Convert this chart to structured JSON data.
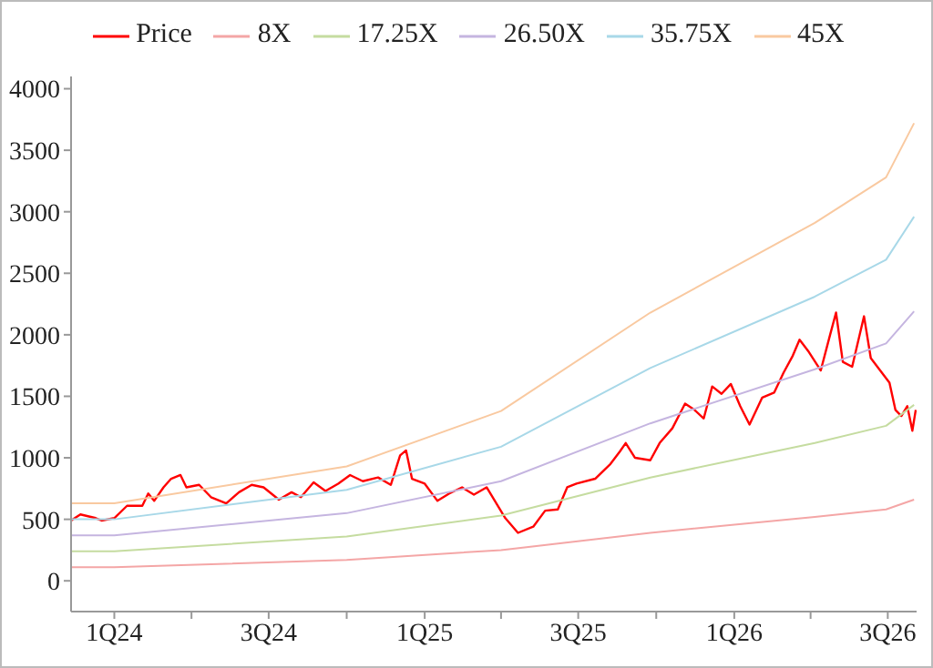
{
  "chart_data": {
    "type": "line",
    "xlim": [
      "2023-11-11",
      "2026-08-04"
    ],
    "ylim": [
      -250,
      4100
    ],
    "xticks": [
      {
        "value": "2024-01-01",
        "label": "1Q24"
      },
      {
        "value": "2024-04-01",
        "label": null
      },
      {
        "value": "2024-07-01",
        "label": "3Q24"
      },
      {
        "value": "2024-10-01",
        "label": null
      },
      {
        "value": "2025-01-01",
        "label": "1Q25"
      },
      {
        "value": "2025-04-01",
        "label": null
      },
      {
        "value": "2025-07-01",
        "label": "3Q25"
      },
      {
        "value": "2025-10-01",
        "label": null
      },
      {
        "value": "2026-01-01",
        "label": "1Q26"
      },
      {
        "value": "2026-04-01",
        "label": null
      },
      {
        "value": "2026-07-01",
        "label": "3Q26"
      }
    ],
    "yticks": [
      0,
      500,
      1000,
      1500,
      2000,
      2500,
      3000,
      3500,
      4000
    ],
    "legend": "top",
    "marker": "none",
    "line_style": "solid",
    "series": [
      {
        "name": "Price",
        "color": "#ff0000",
        "x": [
          "2023-11-11",
          "2023-11-22",
          "2023-12-10",
          "2023-12-17",
          "2024-01-01",
          "2024-01-16",
          "2024-02-03",
          "2024-02-10",
          "2024-02-17",
          "2024-02-28",
          "2024-03-08",
          "2024-03-19",
          "2024-03-26",
          "2024-04-10",
          "2024-04-24",
          "2024-05-12",
          "2024-05-27",
          "2024-06-11",
          "2024-06-25",
          "2024-07-13",
          "2024-07-28",
          "2024-08-08",
          "2024-08-23",
          "2024-09-06",
          "2024-09-21",
          "2024-10-05",
          "2024-10-20",
          "2024-11-07",
          "2024-11-22",
          "2024-12-03",
          "2024-12-10",
          "2024-12-17",
          "2025-01-01",
          "2025-01-16",
          "2025-01-30",
          "2025-02-14",
          "2025-02-28",
          "2025-03-15",
          "2025-04-06",
          "2025-04-21",
          "2025-05-09",
          "2025-05-23",
          "2025-06-07",
          "2025-06-18",
          "2025-06-29",
          "2025-07-21",
          "2025-08-08",
          "2025-08-19",
          "2025-08-26",
          "2025-09-06",
          "2025-09-24",
          "2025-10-05",
          "2025-10-20",
          "2025-11-04",
          "2025-11-15",
          "2025-11-26",
          "2025-12-06",
          "2025-12-17",
          "2025-12-28",
          "2026-01-08",
          "2026-01-19",
          "2026-02-03",
          "2026-02-17",
          "2026-02-28",
          "2026-03-11",
          "2026-03-19",
          "2026-03-30",
          "2026-04-13",
          "2026-04-24",
          "2026-05-01",
          "2026-05-09",
          "2026-05-20",
          "2026-06-03",
          "2026-06-11",
          "2026-06-22",
          "2026-07-03",
          "2026-07-10",
          "2026-07-17",
          "2026-07-24",
          "2026-07-30",
          "2026-08-03"
        ],
        "values": [
          490,
          540,
          510,
          490,
          510,
          610,
          610,
          710,
          650,
          760,
          830,
          860,
          760,
          780,
          680,
          630,
          720,
          780,
          760,
          660,
          720,
          680,
          800,
          730,
          790,
          860,
          810,
          840,
          780,
          1020,
          1060,
          830,
          790,
          650,
          710,
          760,
          700,
          760,
          510,
          390,
          440,
          570,
          580,
          760,
          790,
          830,
          950,
          1050,
          1120,
          1000,
          980,
          1120,
          1240,
          1440,
          1390,
          1320,
          1580,
          1520,
          1600,
          1420,
          1270,
          1490,
          1530,
          1690,
          1830,
          1960,
          1860,
          1710,
          2000,
          2180,
          1780,
          1740,
          2150,
          1810,
          1710,
          1610,
          1390,
          1340,
          1420,
          1220,
          1390
        ]
      },
      {
        "name": "8X",
        "color": "#f4a6a6",
        "x": [
          "2023-11-11",
          "2024-01-01",
          "2024-10-01",
          "2025-04-01",
          "2025-09-24",
          "2026-04-06",
          "2026-06-29",
          "2026-08-01"
        ],
        "values": [
          110,
          110,
          170,
          250,
          390,
          520,
          580,
          660
        ]
      },
      {
        "name": "17.25X",
        "color": "#c5dca0",
        "x": [
          "2023-11-11",
          "2024-01-01",
          "2024-10-01",
          "2025-04-01",
          "2025-09-24",
          "2026-04-06",
          "2026-06-29",
          "2026-08-01"
        ],
        "values": [
          240,
          240,
          360,
          530,
          840,
          1120,
          1260,
          1430
        ]
      },
      {
        "name": "26.50X",
        "color": "#c5b5e0",
        "x": [
          "2023-11-11",
          "2024-01-01",
          "2024-10-01",
          "2025-04-01",
          "2025-09-24",
          "2026-04-06",
          "2026-06-29",
          "2026-08-01"
        ],
        "values": [
          370,
          370,
          550,
          810,
          1280,
          1720,
          1930,
          2190
        ]
      },
      {
        "name": "35.75X",
        "color": "#a8d8e8",
        "x": [
          "2023-11-11",
          "2024-01-01",
          "2024-10-01",
          "2025-04-01",
          "2025-09-24",
          "2026-04-06",
          "2026-06-29",
          "2026-08-01"
        ],
        "values": [
          500,
          500,
          740,
          1090,
          1730,
          2310,
          2610,
          2960
        ]
      },
      {
        "name": "45X",
        "color": "#f9c9a0",
        "x": [
          "2023-11-11",
          "2024-01-01",
          "2024-10-01",
          "2025-04-01",
          "2025-09-24",
          "2026-04-06",
          "2026-06-29",
          "2026-08-01"
        ],
        "values": [
          630,
          630,
          930,
          1380,
          2180,
          2910,
          3280,
          3720
        ]
      }
    ]
  }
}
